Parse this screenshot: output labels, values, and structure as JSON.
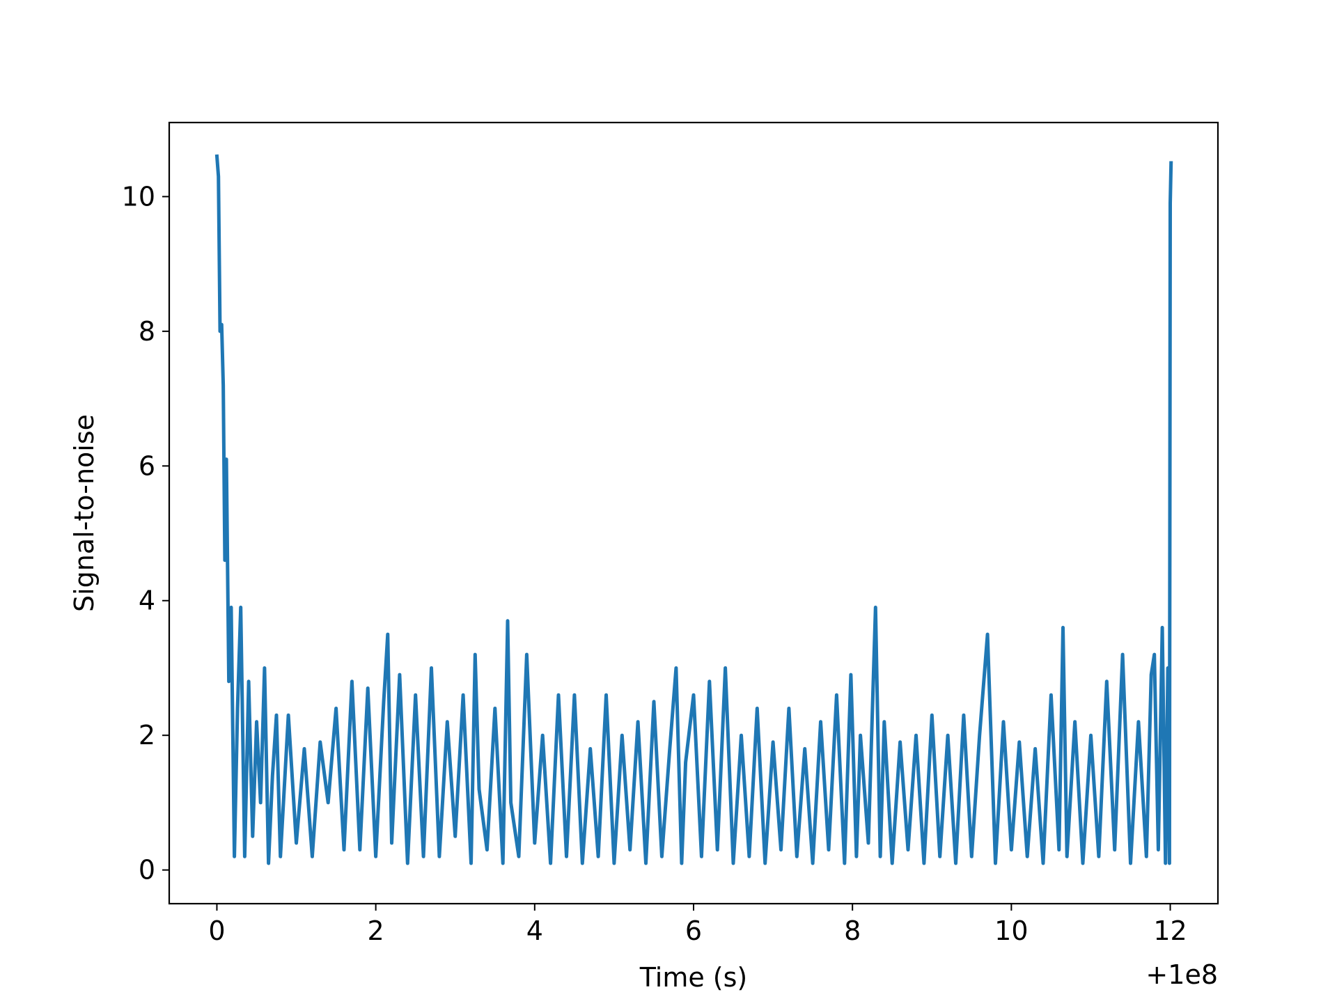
{
  "chart_data": {
    "type": "line",
    "title": "",
    "xlabel": "Time (s)",
    "ylabel": "Signal-to-noise",
    "x_offset_label": "+1e8",
    "xlim": [
      -0.6,
      12.6
    ],
    "ylim": [
      -0.5,
      11.1
    ],
    "xticks": [
      0,
      2,
      4,
      6,
      8,
      10,
      12
    ],
    "xtick_labels": [
      "0",
      "2",
      "4",
      "6",
      "8",
      "10",
      "12"
    ],
    "yticks": [
      0,
      2,
      4,
      6,
      8,
      10
    ],
    "ytick_labels": [
      "0",
      "2",
      "4",
      "6",
      "8",
      "10"
    ],
    "grid": false,
    "legend": "none",
    "series": [
      {
        "color": "#1f77b4",
        "x": [
          0.0,
          0.02,
          0.04,
          0.06,
          0.08,
          0.1,
          0.12,
          0.15,
          0.18,
          0.22,
          0.26,
          0.3,
          0.35,
          0.4,
          0.45,
          0.5,
          0.55,
          0.6,
          0.65,
          0.7,
          0.75,
          0.8,
          0.9,
          1.0,
          1.1,
          1.2,
          1.3,
          1.4,
          1.5,
          1.6,
          1.7,
          1.8,
          1.9,
          2.0,
          2.1,
          2.15,
          2.2,
          2.3,
          2.4,
          2.5,
          2.6,
          2.7,
          2.8,
          2.9,
          3.0,
          3.1,
          3.2,
          3.25,
          3.3,
          3.4,
          3.5,
          3.6,
          3.66,
          3.7,
          3.8,
          3.9,
          4.0,
          4.1,
          4.2,
          4.3,
          4.4,
          4.5,
          4.6,
          4.7,
          4.8,
          4.9,
          5.0,
          5.1,
          5.2,
          5.3,
          5.4,
          5.5,
          5.6,
          5.7,
          5.78,
          5.85,
          5.9,
          6.0,
          6.1,
          6.2,
          6.3,
          6.4,
          6.5,
          6.6,
          6.7,
          6.8,
          6.9,
          7.0,
          7.1,
          7.2,
          7.3,
          7.4,
          7.5,
          7.6,
          7.7,
          7.8,
          7.9,
          7.98,
          8.05,
          8.1,
          8.2,
          8.29,
          8.35,
          8.4,
          8.5,
          8.6,
          8.7,
          8.8,
          8.9,
          9.0,
          9.1,
          9.2,
          9.3,
          9.4,
          9.5,
          9.6,
          9.7,
          9.8,
          9.9,
          10.0,
          10.1,
          10.2,
          10.3,
          10.4,
          10.5,
          10.6,
          10.65,
          10.7,
          10.8,
          10.9,
          11.0,
          11.1,
          11.2,
          11.3,
          11.4,
          11.5,
          11.6,
          11.7,
          11.76,
          11.8,
          11.85,
          11.9,
          11.94,
          11.97,
          11.99,
          12.0,
          12.01
        ],
        "y": [
          10.6,
          10.3,
          8.0,
          8.1,
          7.2,
          4.6,
          6.1,
          2.8,
          3.9,
          0.2,
          2.4,
          3.9,
          0.2,
          2.8,
          0.5,
          2.2,
          1.0,
          3.0,
          0.1,
          1.4,
          2.3,
          0.2,
          2.3,
          0.4,
          1.8,
          0.2,
          1.9,
          1.0,
          2.4,
          0.3,
          2.8,
          0.3,
          2.7,
          0.2,
          2.5,
          3.5,
          0.4,
          2.9,
          0.1,
          2.6,
          0.2,
          3.0,
          0.2,
          2.2,
          0.5,
          2.6,
          0.1,
          3.2,
          1.2,
          0.3,
          2.4,
          0.1,
          3.7,
          1.0,
          0.2,
          3.2,
          0.4,
          2.0,
          0.1,
          2.6,
          0.2,
          2.6,
          0.1,
          1.8,
          0.2,
          2.6,
          0.1,
          2.0,
          0.3,
          2.2,
          0.1,
          2.5,
          0.2,
          1.8,
          3.0,
          0.1,
          1.6,
          2.6,
          0.2,
          2.8,
          0.3,
          3.0,
          0.1,
          2.0,
          0.2,
          2.4,
          0.1,
          1.9,
          0.3,
          2.4,
          0.2,
          1.8,
          0.1,
          2.2,
          0.3,
          2.6,
          0.1,
          2.9,
          0.2,
          2.0,
          0.4,
          3.9,
          0.2,
          2.2,
          0.1,
          1.9,
          0.3,
          2.0,
          0.1,
          2.3,
          0.2,
          2.0,
          0.1,
          2.3,
          0.2,
          2.0,
          3.5,
          0.1,
          2.2,
          0.3,
          1.9,
          0.2,
          1.8,
          0.1,
          2.6,
          0.3,
          3.6,
          0.2,
          2.2,
          0.1,
          2.0,
          0.2,
          2.8,
          0.3,
          3.2,
          0.1,
          2.2,
          0.2,
          2.9,
          3.2,
          0.3,
          3.6,
          0.1,
          3.0,
          0.1,
          9.9,
          10.5
        ]
      }
    ]
  }
}
